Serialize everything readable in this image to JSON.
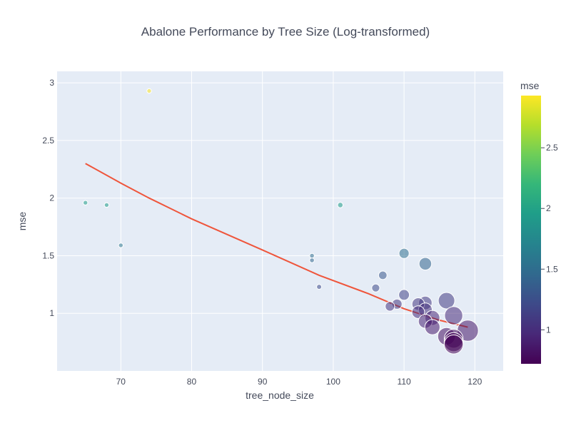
{
  "chart_data": {
    "type": "scatter",
    "title": "Abalone Performance by Tree Size (Log-transformed)",
    "xlabel": "tree_node_size",
    "ylabel": "mse",
    "xlim": [
      61,
      124
    ],
    "ylim": [
      0.5,
      3.1
    ],
    "xticks": [
      70,
      80,
      90,
      100,
      110,
      120
    ],
    "yticks": [
      1,
      1.5,
      2,
      2.5,
      3
    ],
    "ytick_labels": [
      "1",
      "1.5",
      "2",
      "2.5",
      "3"
    ],
    "grid": true,
    "colorbar": {
      "title": "mse",
      "colorscale": "viridis",
      "range": [
        0.72,
        2.93
      ],
      "ticks": [
        1,
        1.5,
        2,
        2.5
      ]
    },
    "marker_size_meaning": "larger markers for larger tree_node_size / lower mse",
    "points": [
      {
        "x": 74,
        "y": 2.93
      },
      {
        "x": 65,
        "y": 1.96
      },
      {
        "x": 68,
        "y": 1.94
      },
      {
        "x": 70,
        "y": 1.59
      },
      {
        "x": 101,
        "y": 1.94
      },
      {
        "x": 97,
        "y": 1.5
      },
      {
        "x": 97,
        "y": 1.46
      },
      {
        "x": 98,
        "y": 1.23
      },
      {
        "x": 110,
        "y": 1.52
      },
      {
        "x": 113,
        "y": 1.43
      },
      {
        "x": 107,
        "y": 1.33
      },
      {
        "x": 106,
        "y": 1.22
      },
      {
        "x": 110,
        "y": 1.16
      },
      {
        "x": 108,
        "y": 1.06
      },
      {
        "x": 109,
        "y": 1.08
      },
      {
        "x": 116,
        "y": 1.11
      },
      {
        "x": 112,
        "y": 1.08
      },
      {
        "x": 113,
        "y": 1.09
      },
      {
        "x": 112,
        "y": 1.01
      },
      {
        "x": 113,
        "y": 1.03
      },
      {
        "x": 117,
        "y": 0.98
      },
      {
        "x": 113,
        "y": 0.93
      },
      {
        "x": 114,
        "y": 0.96
      },
      {
        "x": 114,
        "y": 0.88
      },
      {
        "x": 116,
        "y": 0.8
      },
      {
        "x": 119,
        "y": 0.85
      },
      {
        "x": 117,
        "y": 0.78
      },
      {
        "x": 117,
        "y": 0.75
      },
      {
        "x": 117,
        "y": 0.73
      }
    ],
    "trend_line": {
      "x": [
        65,
        70,
        74,
        80,
        90,
        98,
        105,
        110,
        115,
        119
      ],
      "y": [
        2.3,
        2.13,
        2.0,
        1.82,
        1.55,
        1.33,
        1.17,
        1.04,
        0.94,
        0.88
      ],
      "color": "#ef553b"
    }
  }
}
